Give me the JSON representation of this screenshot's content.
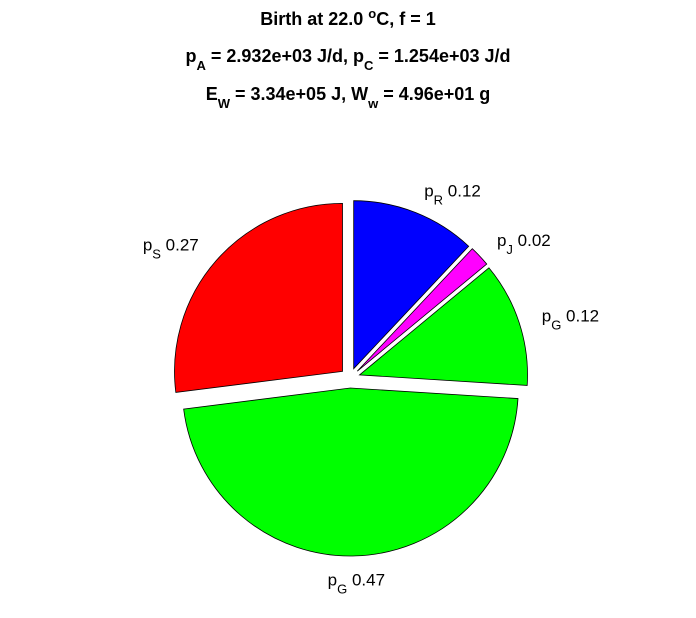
{
  "chart_data": {
    "type": "pie",
    "title": [
      [
        {
          "text": "Birth at 22.0 "
        },
        {
          "text": "o",
          "shift": "super"
        },
        {
          "text": "C, f = 1"
        }
      ],
      [
        {
          "text": "p"
        },
        {
          "text": "A",
          "shift": "sub"
        },
        {
          "text": " = 2.932e+03 J/d, p"
        },
        {
          "text": "C",
          "shift": "sub"
        },
        {
          "text": " = 1.254e+03 J/d"
        }
      ],
      [
        {
          "text": "E"
        },
        {
          "text": "W",
          "shift": "sub"
        },
        {
          "text": " = 3.34e+05 J, W"
        },
        {
          "text": "w",
          "shift": "sub"
        },
        {
          "text": " = 4.96e+01 g"
        }
      ]
    ],
    "categories": [
      [
        {
          "text": "p"
        },
        {
          "text": "R",
          "shift": "sub"
        }
      ],
      [
        {
          "text": "p"
        },
        {
          "text": "J",
          "shift": "sub"
        }
      ],
      [
        {
          "text": "p"
        },
        {
          "text": "G",
          "shift": "sub"
        }
      ],
      [
        {
          "text": "p"
        },
        {
          "text": "G",
          "shift": "sub"
        }
      ],
      [
        {
          "text": "p"
        },
        {
          "text": "S",
          "shift": "sub"
        }
      ]
    ],
    "values": [
      0.12,
      0.02,
      0.12,
      0.47,
      0.27
    ],
    "colors": [
      "#0000ff",
      "#ff00ff",
      "#00ff00",
      "#00ff00",
      "#ff0000"
    ],
    "exploded": true
  }
}
